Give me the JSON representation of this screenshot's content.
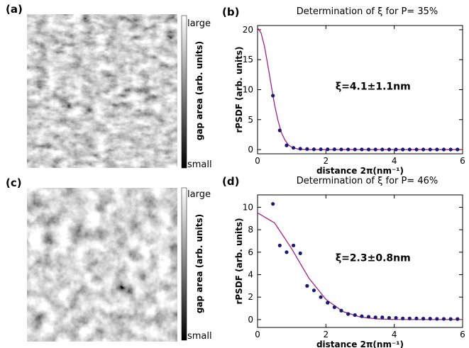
{
  "image_panels": [
    {
      "label": "(a)",
      "colorbar_label": "gap area (arb. units)",
      "colorbar_max": "large",
      "colorbar_min": "small"
    },
    {
      "label": "(c)",
      "colorbar_label": "gap area (arb. units)",
      "colorbar_max": "large",
      "colorbar_min": "small"
    }
  ],
  "chart_data": [
    {
      "type": "scatter",
      "panel_label": "(b)",
      "title": "Determination of ξ for P= 35%",
      "x_label": "distance 2π(nm⁻¹)",
      "y_label": "rPSDF (arb. units)",
      "annotation": "ξ=4.1±1.1nm",
      "xlim": [
        0,
        6
      ],
      "ylim": [
        -0.7,
        20.7
      ],
      "xticks": [
        0,
        2,
        4,
        6
      ],
      "yticks": [
        0,
        5,
        10,
        15,
        20
      ],
      "points": {
        "color": "#1a1a6e",
        "x": [
          0.45,
          0.65,
          0.85,
          1.05,
          1.25,
          1.45,
          1.65,
          1.85,
          2.05,
          2.25,
          2.45,
          2.65,
          2.85,
          3.05,
          3.25,
          3.45,
          3.65,
          3.85,
          4.05,
          4.25,
          4.45,
          4.65,
          4.85,
          5.05,
          5.25,
          5.45,
          5.65,
          5.85
        ],
        "y": [
          9,
          3.2,
          0.7,
          0.3,
          0.15,
          0.1,
          0.05,
          0.05,
          0.05,
          0.05,
          0.03,
          0.03,
          0.03,
          0.03,
          0.02,
          0.02,
          0.02,
          0.02,
          0.02,
          0.02,
          0.02,
          0.02,
          0.02,
          0.02,
          0.02,
          0.02,
          0.02,
          0.02
        ]
      },
      "fit": {
        "color": "#a0208c",
        "x": [
          0,
          0.1,
          0.2,
          0.3,
          0.4,
          0.5,
          0.6,
          0.7,
          0.8,
          0.9,
          1.0,
          1.2,
          1.5,
          6
        ],
        "y": [
          20.3,
          19.5,
          17.3,
          14.1,
          10.7,
          7.4,
          4.8,
          2.8,
          1.6,
          0.8,
          0.4,
          0.06,
          0,
          0
        ]
      }
    },
    {
      "type": "scatter",
      "panel_label": "(d)",
      "title": "Determination of ξ for P= 46%",
      "x_label": "distance 2π(nm⁻¹)",
      "y_label": "rPSDF (arb. units)",
      "annotation": "ξ=2.3±0.8nm",
      "xlim": [
        0,
        6
      ],
      "ylim": [
        -0.7,
        11.1
      ],
      "xticks": [
        0,
        2,
        4,
        6
      ],
      "yticks": [
        0,
        2,
        4,
        6,
        8,
        10
      ],
      "points": {
        "color": "#1a1a6e",
        "x": [
          0.45,
          0.65,
          0.85,
          1.05,
          1.25,
          1.45,
          1.65,
          1.85,
          2.05,
          2.25,
          2.45,
          2.65,
          2.85,
          3.05,
          3.25,
          3.45,
          3.65,
          3.85,
          4.05,
          4.25,
          4.45,
          4.65,
          4.85,
          5.05,
          5.25,
          5.45,
          5.65,
          5.85
        ],
        "y": [
          10.3,
          6.6,
          6.0,
          6.6,
          5.9,
          3.0,
          2.6,
          2.0,
          1.5,
          1.1,
          0.8,
          0.5,
          0.4,
          0.3,
          0.25,
          0.2,
          0.2,
          0.15,
          0.15,
          0.1,
          0.1,
          0.1,
          0.08,
          0.08,
          0.06,
          0.06,
          0.05,
          0.05
        ]
      },
      "fit": {
        "color": "#a0208c",
        "x": [
          0,
          0.5,
          1,
          1.5,
          2,
          2.5,
          3,
          3.5,
          4,
          5,
          6
        ],
        "y": [
          9.5,
          8.6,
          6.3,
          3.7,
          1.8,
          0.71,
          0.23,
          0.06,
          0.01,
          0,
          0
        ]
      }
    }
  ]
}
